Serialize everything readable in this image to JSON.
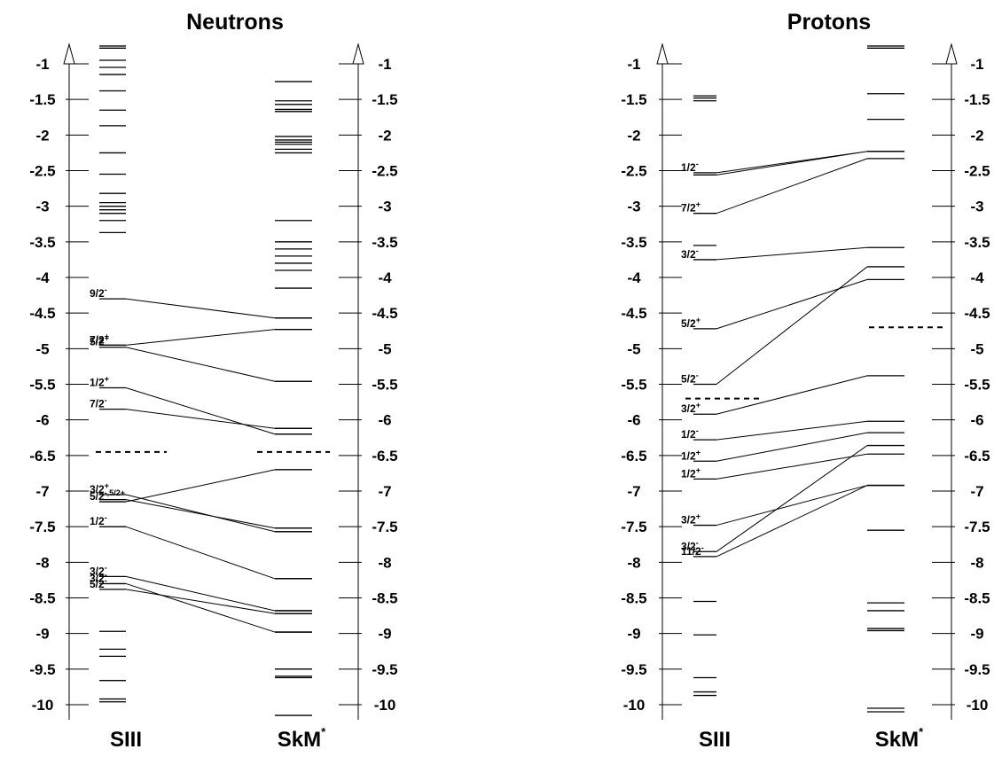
{
  "chart_data": [
    {
      "type": "level-diagram",
      "title": "Neutrons",
      "models": [
        "SIII",
        "SkM*"
      ],
      "model_labels": [
        {
          "base": "SIII",
          "sup": ""
        },
        {
          "base": "SkM",
          "sup": "*"
        }
      ],
      "y_ticks": [
        -1,
        -1.5,
        -2,
        -2.5,
        -3,
        -3.5,
        -4,
        -4.5,
        -5,
        -5.5,
        -6,
        -6.5,
        -7,
        -7.5,
        -8,
        -8.5,
        -9,
        -9.5,
        -10
      ],
      "y_tick_labels": [
        "-1",
        "-1.5",
        "-2",
        "-2.5",
        "-3",
        "-3.5",
        "-4",
        "-4.5",
        "-5",
        "-5.5",
        "-6",
        "-6.5",
        "-7",
        "-7.5",
        "-8",
        "-8.5",
        "-9",
        "-9.5",
        "-10"
      ],
      "ylim": [
        -10.2,
        -0.6
      ],
      "left_levels": [
        -0.75,
        -0.78,
        -0.95,
        -1.05,
        -1.15,
        -1.38,
        -1.65,
        -1.87,
        -2.25,
        -2.55,
        -2.82,
        -2.95,
        -3.0,
        -3.05,
        -3.1,
        -3.2,
        -3.37,
        -8.97,
        -9.22,
        -9.32,
        -9.66,
        -9.92,
        -9.96
      ],
      "right_levels": [
        -1.25,
        -1.52,
        -1.57,
        -1.64,
        -1.67,
        -2.02,
        -2.07,
        -2.1,
        -2.13,
        -2.2,
        -2.25,
        -3.2,
        -3.5,
        -3.6,
        -3.7,
        -3.8,
        -3.9,
        -4.15,
        -4.57,
        -4.73,
        -5.46,
        -6.12,
        -6.2,
        -6.7,
        -7.52,
        -7.57,
        -8.23,
        -8.68,
        -8.72,
        -8.98,
        -9.5,
        -9.6,
        -9.62,
        -10.15
      ],
      "labeled_levels": [
        {
          "base": "9/2",
          "sup": "-",
          "left": -4.3,
          "right": -4.57
        },
        {
          "base": "7/2",
          "sup": "+",
          "left": -4.95,
          "right": -4.73
        },
        {
          "base": "5/2",
          "sup": "+",
          "left": -4.98,
          "right": -5.46
        },
        {
          "base": "1/2",
          "sup": "+",
          "left": -5.55,
          "right": -6.2
        },
        {
          "base": "7/2",
          "sup": "-",
          "left": -5.85,
          "right": -6.12
        },
        {
          "base": "3/2",
          "sup": "+",
          "left": -7.05,
          "right": -7.57
        },
        {
          "base": "5/2",
          "sup": "-,5/2",
          "sup2": "+",
          "left": -7.15,
          "right": -6.7
        },
        {
          "base": "",
          "sup": "",
          "left": -7.12,
          "right": -7.52
        },
        {
          "base": "1/2",
          "sup": "-",
          "left": -7.5,
          "right": -8.23
        },
        {
          "base": "3/2",
          "sup": "-",
          "left": -8.2,
          "right": -8.68
        },
        {
          "base": "3/2",
          "sup": "-",
          "left": -8.3,
          "right": -8.98
        },
        {
          "base": "5/2",
          "sup": "-",
          "left": -8.38,
          "right": -8.72
        }
      ],
      "fermi_levels": {
        "left": -6.45,
        "right": -6.45
      }
    },
    {
      "type": "level-diagram",
      "title": "Protons",
      "models": [
        "SIII",
        "SkM*"
      ],
      "model_labels": [
        {
          "base": "SIII",
          "sup": ""
        },
        {
          "base": "SkM",
          "sup": "*"
        }
      ],
      "y_ticks": [
        -1,
        -1.5,
        -2,
        -2.5,
        -3,
        -3.5,
        -4,
        -4.5,
        -5,
        -5.5,
        -6,
        -6.5,
        -7,
        -7.5,
        -8,
        -8.5,
        -9,
        -9.5,
        -10
      ],
      "y_tick_labels": [
        "-1",
        "-1.5",
        "-2",
        "-2.5",
        "-3",
        "-3.5",
        "-4",
        "-4.5",
        "-5",
        "-5.5",
        "-6",
        "-6.5",
        "-7",
        "-7.5",
        "-8",
        "-8.5",
        "-9",
        "-9.5",
        "-10"
      ],
      "ylim": [
        -10.2,
        -0.6
      ],
      "left_levels": [
        -1.45,
        -1.48,
        -1.52,
        -3.55,
        -8.55,
        -9.02,
        -9.62,
        -9.82,
        -9.87
      ],
      "right_levels": [
        -0.75,
        -0.78,
        -1.42,
        -1.78,
        -7.55,
        -8.57,
        -8.68,
        -8.93,
        -8.96,
        -10.05,
        -10.1
      ],
      "labeled_levels": [
        {
          "base": "1/2",
          "sup": "-",
          "left": -2.53,
          "right": -2.23
        },
        {
          "base": "",
          "sup": "",
          "left": -2.56,
          "right": -2.23
        },
        {
          "base": "7/2",
          "sup": "+",
          "left": -3.1,
          "right": -2.33
        },
        {
          "base": "3/2",
          "sup": "-",
          "left": -3.75,
          "right": -3.58
        },
        {
          "base": "5/2",
          "sup": "+",
          "left": -4.72,
          "right": -4.03
        },
        {
          "base": "5/2",
          "sup": "-",
          "left": -5.5,
          "right": -3.85
        },
        {
          "base": "3/2",
          "sup": "+",
          "left": -5.92,
          "right": -5.38
        },
        {
          "base": "1/2",
          "sup": "-",
          "left": -6.28,
          "right": -6.02
        },
        {
          "base": "1/2",
          "sup": "+",
          "left": -6.58,
          "right": -6.18
        },
        {
          "base": "1/2",
          "sup": "+",
          "left": -6.83,
          "right": -6.48
        },
        {
          "base": "3/2",
          "sup": "+",
          "left": -7.48,
          "right": -6.92
        },
        {
          "base": "3/2",
          "sup": "-",
          "left": -7.85,
          "right": -6.36
        },
        {
          "base": "11/2",
          "sup": "-",
          "left": -7.92,
          "right": -6.92
        }
      ],
      "fermi_levels": {
        "left": -5.7,
        "right": -4.7
      }
    }
  ]
}
